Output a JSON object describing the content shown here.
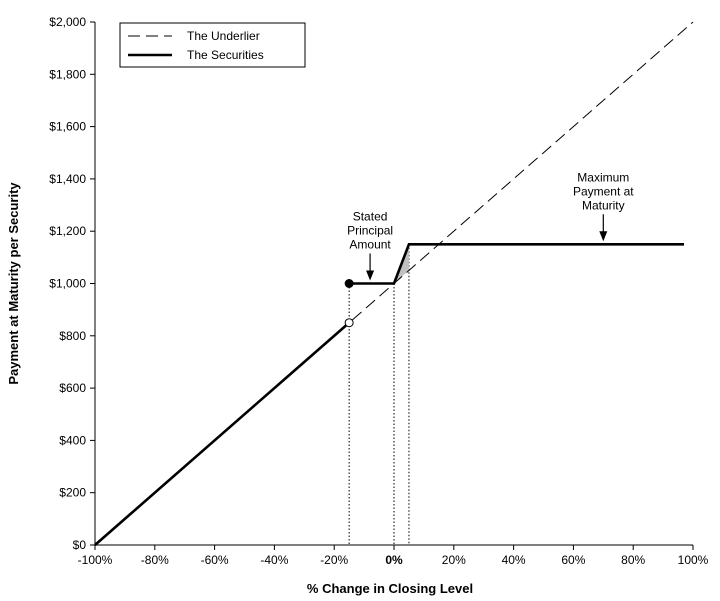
{
  "chart_data": {
    "type": "line",
    "xlabel": "% Change in Closing Level",
    "ylabel": "Payment at Maturity per Security",
    "xlim": [
      -100,
      100
    ],
    "ylim": [
      0,
      2000
    ],
    "x_ticks": [
      -100,
      -80,
      -60,
      -40,
      -20,
      0,
      20,
      40,
      60,
      80,
      100
    ],
    "x_tick_labels": [
      "-100%",
      "-80%",
      "-60%",
      "-40%",
      "-20%",
      "0%",
      "20%",
      "40%",
      "60%",
      "80%",
      "100%"
    ],
    "y_ticks": [
      0,
      200,
      400,
      600,
      800,
      1000,
      1200,
      1400,
      1600,
      1800,
      2000
    ],
    "y_tick_labels": [
      "$0",
      "$200",
      "$400",
      "$600",
      "$800",
      "$1,000",
      "$1,200",
      "$1,400",
      "$1,600",
      "$1,800",
      "$2,000"
    ],
    "legend": {
      "placement": "top-left",
      "entries": [
        "The Underlier",
        "The Securities"
      ]
    },
    "series": [
      {
        "name": "The Underlier",
        "style": "dashed",
        "color": "#000000",
        "x": [
          -100,
          100
        ],
        "y": [
          0,
          2000
        ]
      },
      {
        "name": "The Securities",
        "style": "solid",
        "color": "#000000",
        "segments": [
          {
            "x": [
              -100,
              -15
            ],
            "y": [
              0,
              850
            ]
          },
          {
            "x": [
              -15,
              0,
              5,
              97
            ],
            "y": [
              1000,
              1000,
              1150,
              1150
            ]
          }
        ]
      }
    ],
    "markers": [
      {
        "x": -15,
        "y": 1000,
        "fill": "filled"
      },
      {
        "x": -15,
        "y": 850,
        "fill": "open"
      }
    ],
    "reference_lines": [
      {
        "x": -15,
        "y_top": 1000
      },
      {
        "x": 0,
        "y_top": 1000
      },
      {
        "x": 5,
        "y_top": 1150
      }
    ],
    "shaded_region": {
      "x": [
        0,
        5,
        5
      ],
      "y": [
        1000,
        1150,
        1050
      ],
      "color": "#c0c0c0"
    },
    "annotations": [
      {
        "lines": [
          "Stated",
          "Principal",
          "Amount"
        ],
        "arrow_tip_x": -8,
        "arrow_tip_y": 1000
      },
      {
        "lines": [
          "Maximum",
          "Payment at",
          "Maturity"
        ],
        "arrow_tip_x": 70,
        "arrow_tip_y": 1150
      }
    ]
  }
}
